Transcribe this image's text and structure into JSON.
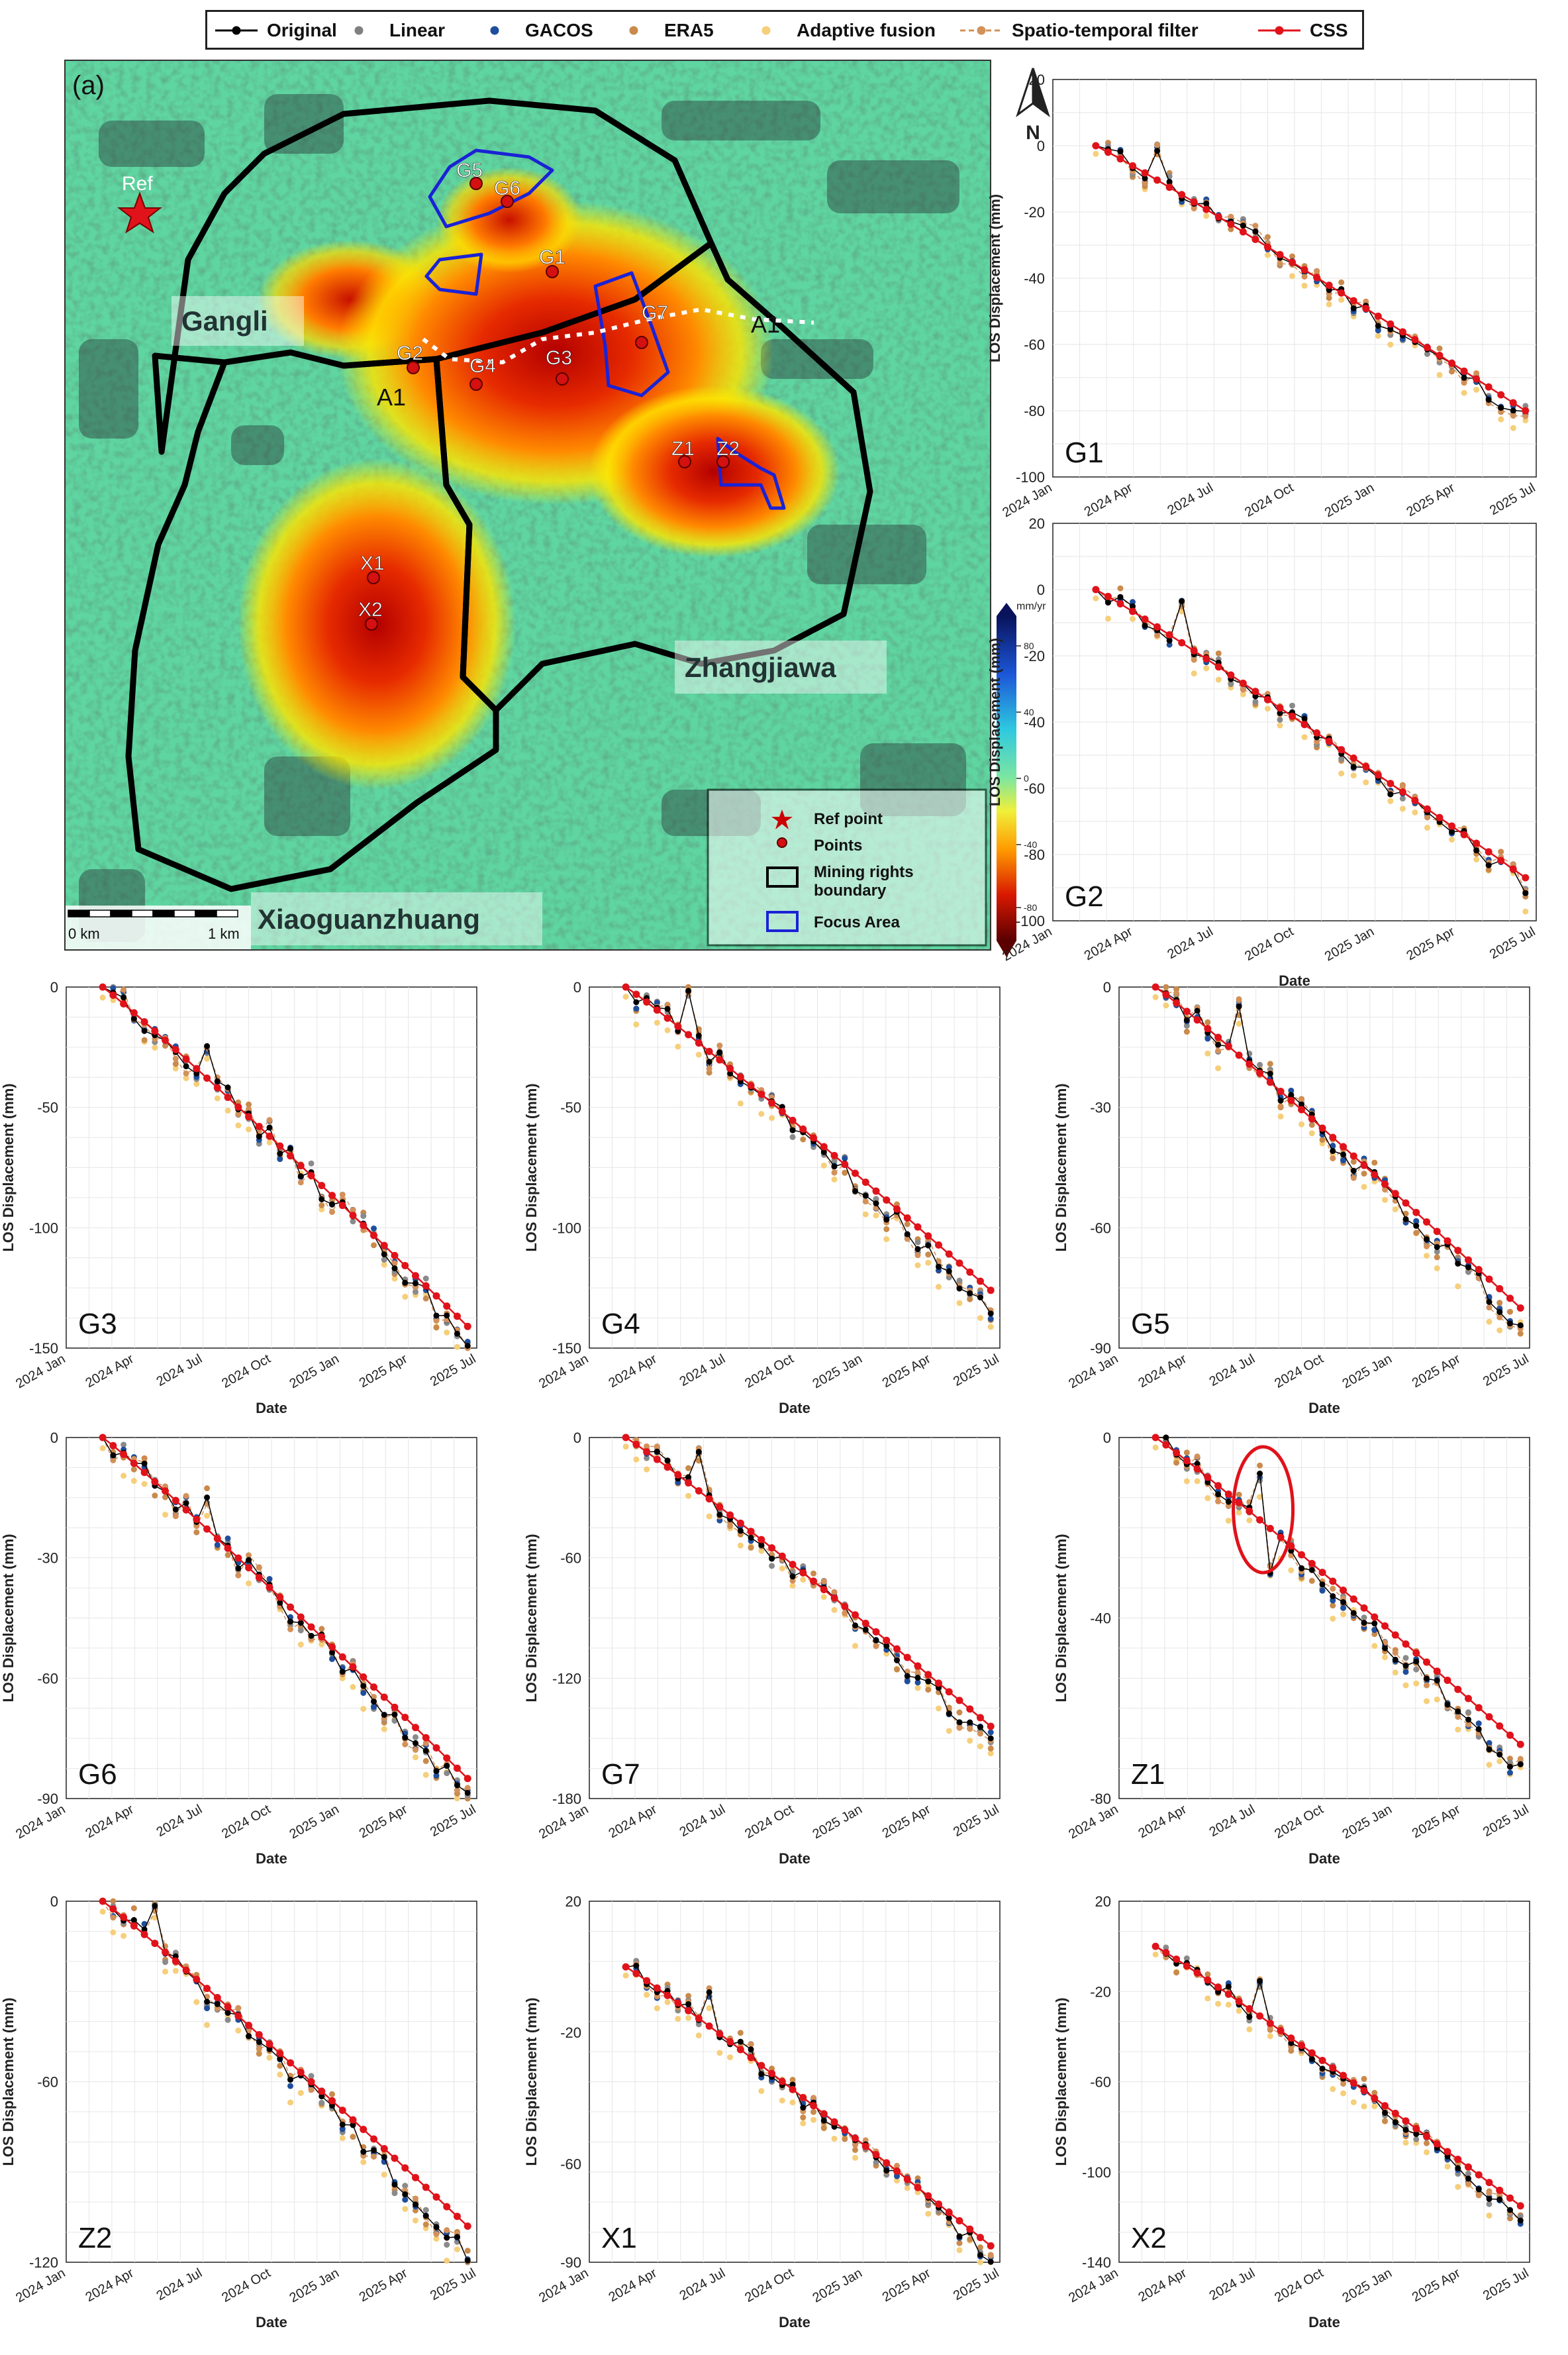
{
  "legend": [
    {
      "label": "Original",
      "color": "#000000",
      "line": "#000000",
      "dash": false
    },
    {
      "label": "Linear",
      "color": "#808080",
      "line": null,
      "dash": false
    },
    {
      "label": "GACOS",
      "color": "#1f4e9c",
      "line": null,
      "dash": false
    },
    {
      "label": "ERA5",
      "color": "#c98a4b",
      "line": null,
      "dash": false
    },
    {
      "label": "Adaptive fusion",
      "color": "#f6cf7b",
      "line": null,
      "dash": false
    },
    {
      "label": "Spatio-temporal filter",
      "color": "#d3915a",
      "line": "#d3915a",
      "dash": true
    },
    {
      "label": "CSS",
      "color": "#e0121a",
      "line": "#e0121a",
      "dash": false
    }
  ],
  "map": {
    "panel_label": "(a)",
    "north_label": "N",
    "ref_label": "Ref",
    "region_labels": [
      "Gangli",
      "Zhangjiawa",
      "Xiaoguanzhuang"
    ],
    "profile_labels": [
      "A1",
      "A1"
    ],
    "point_labels": [
      "G5",
      "G6",
      "G1",
      "G2",
      "G4",
      "G3",
      "G7",
      "Z1",
      "Z2",
      "X1",
      "X2"
    ],
    "scalebar": {
      "left": "0 km",
      "right": "1 km"
    },
    "colorbar": {
      "unit": "mm/yr",
      "ticks": [
        "80",
        "40",
        "0",
        "-40",
        "-80"
      ]
    },
    "map_legend": [
      "Ref point",
      "Points",
      "Mining rights boundary",
      "Focus Area"
    ]
  },
  "chart_data": [
    {
      "id": "G1",
      "type": "line",
      "xlabel": "Date",
      "ylabel": "LOS Displacement (mm)",
      "ylim": [
        -100,
        20
      ],
      "yticks": [
        20,
        0,
        -20,
        -40,
        -60,
        -80,
        -100
      ],
      "final": {
        "original": -82,
        "css": -80
      }
    },
    {
      "id": "G2",
      "type": "line",
      "xlabel": "Date",
      "ylabel": "LOS Displacement (mm)",
      "ylim": [
        -100,
        20
      ],
      "yticks": [
        20,
        0,
        -20,
        -40,
        -60,
        -80,
        -100
      ],
      "final": {
        "original": -89,
        "css": -87
      }
    },
    {
      "id": "G3",
      "type": "line",
      "xlabel": "Date",
      "ylabel": "LOS Displacement (mm)",
      "ylim": [
        -150,
        0
      ],
      "yticks": [
        0,
        -50,
        -100,
        -150
      ],
      "final": {
        "original": -146,
        "css": -141
      }
    },
    {
      "id": "G4",
      "type": "line",
      "xlabel": "Date",
      "ylabel": "LOS Displacement (mm)",
      "ylim": [
        -150,
        0
      ],
      "yticks": [
        0,
        -50,
        -100,
        -150
      ],
      "final": {
        "original": -134,
        "css": -126
      }
    },
    {
      "id": "G5",
      "type": "line",
      "xlabel": "Date",
      "ylabel": "LOS Displacement (mm)",
      "ylim": [
        -90,
        0
      ],
      "yticks": [
        0,
        -30,
        -60,
        -90
      ],
      "final": {
        "original": -84,
        "css": -80
      }
    },
    {
      "id": "G6",
      "type": "line",
      "xlabel": "Date",
      "ylabel": "LOS Displacement (mm)",
      "ylim": [
        -90,
        0
      ],
      "yticks": [
        0,
        -30,
        -60,
        -90
      ],
      "final": {
        "original": -89,
        "css": -85
      }
    },
    {
      "id": "G7",
      "type": "line",
      "xlabel": "Date",
      "ylabel": "LOS Displacement (mm)",
      "ylim": [
        -180,
        0
      ],
      "yticks": [
        0,
        -60,
        -120,
        -180
      ],
      "final": {
        "original": -152,
        "css": -144
      }
    },
    {
      "id": "Z1",
      "type": "line",
      "xlabel": "Date",
      "ylabel": "LOS Displacement (mm)",
      "ylim": [
        -80,
        0
      ],
      "yticks": [
        0,
        -40,
        -80
      ],
      "final": {
        "original": -74,
        "css": -68
      },
      "highlight": true
    },
    {
      "id": "Z2",
      "type": "line",
      "xlabel": "Date",
      "ylabel": "LOS Displacement (mm)",
      "ylim": [
        -120,
        0
      ],
      "yticks": [
        0,
        -60,
        -120
      ],
      "final": {
        "original": -116,
        "css": -108
      }
    },
    {
      "id": "X1",
      "type": "line",
      "xlabel": "Date",
      "ylabel": "LOS Displacement (mm)",
      "ylim": [
        -90,
        20
      ],
      "yticks": [
        20,
        -20,
        -60,
        -90
      ],
      "final": {
        "original": -88,
        "css": -85
      }
    },
    {
      "id": "X2",
      "type": "line",
      "xlabel": "Date",
      "ylabel": "LOS Displacement (mm)",
      "ylim": [
        -140,
        20
      ],
      "yticks": [
        20,
        -20,
        -60,
        -100,
        -140
      ],
      "final": {
        "original": -120,
        "css": -115
      }
    }
  ],
  "x_ticks": [
    "2024 Jan",
    "2024 Apr",
    "2024 Jul",
    "2024 Oct",
    "2025 Jan",
    "2025 Apr",
    "2025 Jul"
  ]
}
